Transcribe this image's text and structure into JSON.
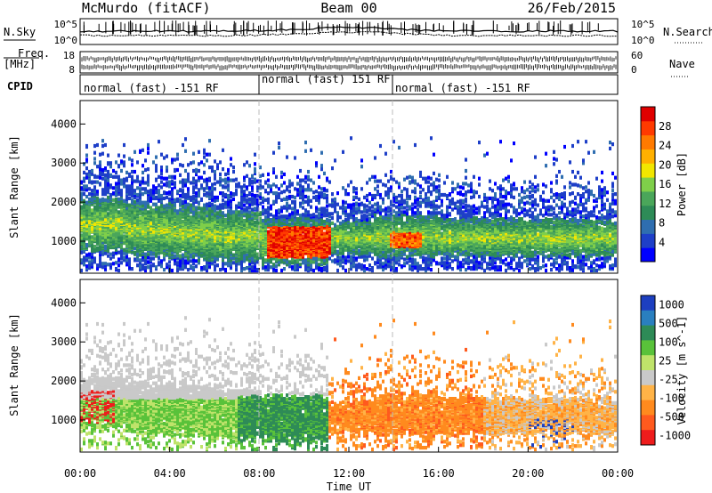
{
  "header": {
    "station": "McMurdo (fitACF)",
    "beam": "Beam 00",
    "date": "26/Feb/2015"
  },
  "strip_labels": {
    "nsky": "N.Sky",
    "nsky_ticks": [
      "10^5",
      "10^0"
    ],
    "nsearch": "N.Search",
    "nsearch_ticks": [
      "10^5",
      "10^0"
    ],
    "freq_line1": "Freq.",
    "freq_line2": "[MHz]",
    "freq_ticks": [
      "18",
      "8"
    ],
    "nave": "Nave",
    "nave_ticks": [
      "60",
      "0"
    ],
    "cpid": "CPID",
    "cpid_segments": [
      "normal (fast) -151 RF",
      "normal (fast) 151 RF",
      "normal (fast) -151 RF"
    ]
  },
  "colors": {
    "power": [
      "#0000ff",
      "#1e3fc8",
      "#2f6eb0",
      "#2e8b57",
      "#4aa65a",
      "#7fcf4a",
      "#f2e600",
      "#ffb000",
      "#ff7a00",
      "#ff3a00",
      "#e00000"
    ],
    "velocity": [
      "#ee1c1c",
      "#ff5a1e",
      "#ff8a1e",
      "#ffb347",
      "#c9c9c9",
      "#bfe36a",
      "#59c23a",
      "#2e8b57",
      "#2a7fbf",
      "#1d3fc0"
    ]
  },
  "chart_data": [
    {
      "type": "heatmap",
      "panel": "power",
      "xlabel": "",
      "ylabel": "Slant Range [km]",
      "x_range": [
        "00:00",
        "24:00"
      ],
      "ylim": [
        180,
        4600
      ],
      "y_ticks": [
        "1000",
        "2000",
        "3000",
        "4000"
      ],
      "colorbar_label": "Power [dB]",
      "colorbar_ticks": [
        "4",
        "8",
        "12",
        "16",
        "20",
        "24",
        "28"
      ],
      "colorbar_range": [
        0,
        32
      ]
    },
    {
      "type": "heatmap",
      "panel": "velocity",
      "xlabel": "Time UT",
      "ylabel": "Slant Range [km]",
      "x_range": [
        "00:00",
        "24:00"
      ],
      "x_ticks": [
        "00:00",
        "04:00",
        "08:00",
        "12:00",
        "16:00",
        "20:00",
        "00:00"
      ],
      "ylim": [
        180,
        4600
      ],
      "y_ticks": [
        "1000",
        "2000",
        "3000",
        "4000"
      ],
      "colorbar_label": "Velocity [m s^-1]",
      "colorbar_ticks": [
        "1000",
        "500",
        "100",
        "25",
        "-25",
        "-100",
        "-500",
        "-1000"
      ]
    }
  ]
}
